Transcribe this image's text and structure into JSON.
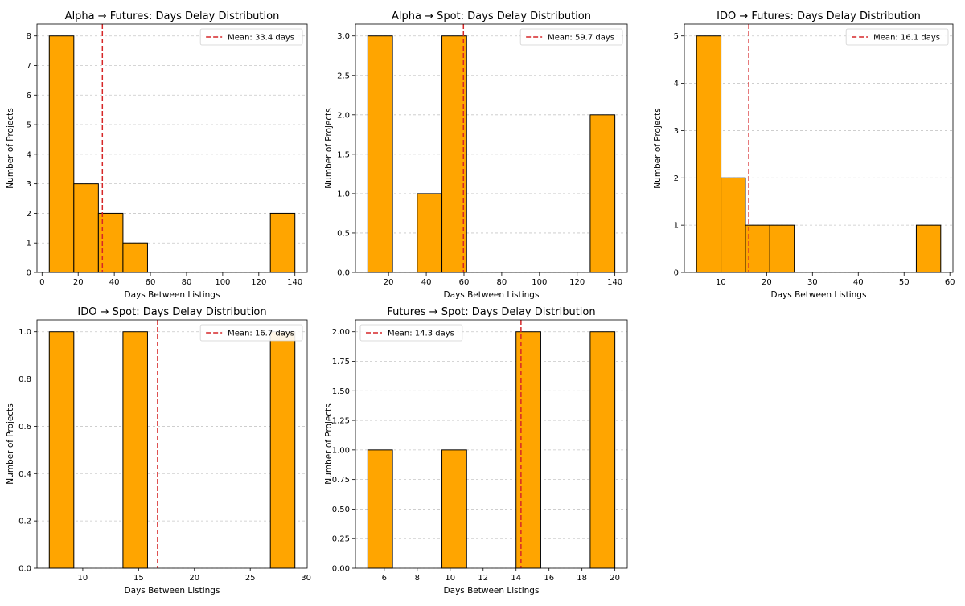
{
  "chart_data": [
    {
      "type": "histogram",
      "title": "Alpha → Futures: Days Delay Distribution",
      "xlabel": "Days Between Listings",
      "ylabel": "Number of Projects",
      "bins": [
        4,
        17.6,
        31.2,
        44.8,
        58.4,
        72,
        85.6,
        99.2,
        112.8,
        126.4,
        140
      ],
      "counts": [
        8,
        3,
        2,
        1,
        0,
        0,
        0,
        0,
        0,
        2
      ],
      "color": "#ffa500",
      "edgecolor": "#000000",
      "mean": 33.4,
      "mean_label": "Mean: 33.4 days",
      "mean_color": "#d62728",
      "legend": "upper right",
      "xlim": [
        -2.8,
        146.8
      ],
      "ylim": [
        0,
        8.4
      ],
      "xticks": [
        0,
        20,
        40,
        60,
        80,
        100,
        120,
        140
      ],
      "yticks": [
        0,
        1,
        2,
        3,
        4,
        5,
        6,
        7,
        8
      ],
      "grid": "y"
    },
    {
      "type": "histogram",
      "title": "Alpha → Spot: Days Delay Distribution",
      "xlabel": "Days Between Listings",
      "ylabel": "Number of Projects",
      "bins": [
        9,
        22.1,
        35.2,
        48.3,
        61.4,
        74.5,
        87.6,
        100.7,
        113.8,
        126.9,
        140
      ],
      "counts": [
        3,
        0,
        1,
        3,
        0,
        0,
        0,
        0,
        0,
        2
      ],
      "color": "#ffa500",
      "edgecolor": "#000000",
      "mean": 59.7,
      "mean_label": "Mean: 59.7 days",
      "mean_color": "#d62728",
      "legend": "upper right",
      "xlim": [
        2.45,
        146.55
      ],
      "ylim": [
        0,
        3.15
      ],
      "xticks": [
        20,
        40,
        60,
        80,
        100,
        120,
        140
      ],
      "yticks": [
        {
          "value": 0,
          "label": "0.0"
        },
        {
          "value": 0.5,
          "label": "0.5"
        },
        {
          "value": 1,
          "label": "1.0"
        },
        {
          "value": 1.5,
          "label": "1.5"
        },
        {
          "value": 2,
          "label": "2.0"
        },
        {
          "value": 2.5,
          "label": "2.5"
        },
        {
          "value": 3,
          "label": "3.0"
        }
      ],
      "grid": "y"
    },
    {
      "type": "histogram",
      "title": "IDO → Futures: Days Delay Distribution",
      "xlabel": "Days Between Listings",
      "ylabel": "Number of Projects",
      "bins": [
        4.7,
        10.03,
        15.36,
        20.69,
        26.02,
        31.35,
        36.68,
        42.01,
        47.34,
        52.67,
        58
      ],
      "counts": [
        5,
        2,
        1,
        1,
        0,
        0,
        0,
        0,
        0,
        1
      ],
      "color": "#ffa500",
      "edgecolor": "#000000",
      "mean": 16.1,
      "mean_label": "Mean: 16.1 days",
      "mean_color": "#d62728",
      "legend": "upper right",
      "xlim": [
        2.03,
        60.67
      ],
      "ylim": [
        0,
        5.25
      ],
      "xticks": [
        10,
        20,
        30,
        40,
        50,
        60
      ],
      "yticks": [
        0,
        1,
        2,
        3,
        4,
        5
      ],
      "grid": "y"
    },
    {
      "type": "histogram",
      "title": "IDO → Spot: Days Delay Distribution",
      "xlabel": "Days Between Listings",
      "ylabel": "Number of Projects",
      "bins": [
        7,
        9.2,
        11.4,
        13.6,
        15.8,
        18,
        20.2,
        22.4,
        24.6,
        26.8,
        29
      ],
      "counts": [
        1,
        0,
        0,
        1,
        0,
        0,
        0,
        0,
        0,
        1
      ],
      "color": "#ffa500",
      "edgecolor": "#000000",
      "mean": 16.7,
      "mean_label": "Mean: 16.7 days",
      "mean_color": "#d62728",
      "legend": "upper right",
      "xlim": [
        5.9,
        30.1
      ],
      "ylim": [
        0,
        1.05
      ],
      "xticks": [
        10,
        15,
        20,
        25,
        30
      ],
      "yticks": [
        {
          "value": 0,
          "label": "0.0"
        },
        {
          "value": 0.2,
          "label": "0.2"
        },
        {
          "value": 0.4,
          "label": "0.4"
        },
        {
          "value": 0.6,
          "label": "0.6"
        },
        {
          "value": 0.8,
          "label": "0.8"
        },
        {
          "value": 1,
          "label": "1.0"
        }
      ],
      "grid": "y"
    },
    {
      "type": "histogram",
      "title": "Futures → Spot: Days Delay Distribution",
      "xlabel": "Days Between Listings",
      "ylabel": "Number of Projects",
      "bins": [
        5,
        6.5,
        8,
        9.5,
        11,
        12.5,
        14,
        15.5,
        17,
        18.5,
        20
      ],
      "counts": [
        1,
        0,
        0,
        1,
        0,
        0,
        2,
        0,
        0,
        2
      ],
      "color": "#ffa500",
      "edgecolor": "#000000",
      "mean": 14.3,
      "mean_label": "Mean: 14.3 days",
      "mean_color": "#d62728",
      "legend": "upper left",
      "xlim": [
        4.25,
        20.75
      ],
      "ylim": [
        0,
        2.1
      ],
      "xticks": [
        6,
        8,
        10,
        12,
        14,
        16,
        18,
        20
      ],
      "yticks": [
        {
          "value": 0,
          "label": "0.00"
        },
        {
          "value": 0.25,
          "label": "0.25"
        },
        {
          "value": 0.5,
          "label": "0.50"
        },
        {
          "value": 0.75,
          "label": "0.75"
        },
        {
          "value": 1,
          "label": "1.00"
        },
        {
          "value": 1.25,
          "label": "1.25"
        },
        {
          "value": 1.5,
          "label": "1.50"
        },
        {
          "value": 1.75,
          "label": "1.75"
        },
        {
          "value": 2,
          "label": "2.00"
        }
      ],
      "grid": "y"
    }
  ]
}
